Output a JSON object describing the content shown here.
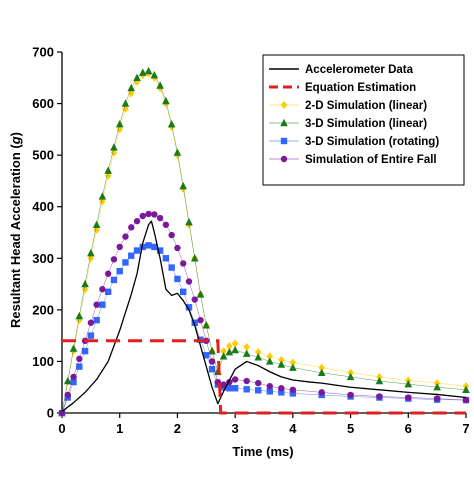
{
  "chart_data": {
    "type": "line",
    "xlabel": "Time (ms)",
    "ylabel": "Resultant Head Acceleration (g)",
    "xlim": [
      0,
      7
    ],
    "ylim": [
      0,
      700
    ],
    "xticks": [
      "0",
      "1",
      "2",
      "3",
      "4",
      "5",
      "6",
      "7"
    ],
    "yticks": [
      "0",
      "100",
      "200",
      "300",
      "400",
      "500",
      "600",
      "700"
    ],
    "grid": false,
    "legend_position": "top-right",
    "series": [
      {
        "name": "Accelerometer Data",
        "style": "solid-line",
        "color": "#000000",
        "x": [
          0,
          0.2,
          0.4,
          0.6,
          0.8,
          1.0,
          1.2,
          1.3,
          1.4,
          1.5,
          1.55,
          1.6,
          1.7,
          1.8,
          1.9,
          2.0,
          2.1,
          2.2,
          2.3,
          2.4,
          2.5,
          2.6,
          2.7,
          2.8,
          3.0,
          3.2,
          3.4,
          3.6,
          3.8,
          4.0,
          4.3,
          4.5,
          5.0,
          5.5,
          6.0,
          6.5,
          7.0
        ],
        "y": [
          3,
          20,
          40,
          65,
          100,
          160,
          230,
          270,
          330,
          365,
          372,
          350,
          300,
          240,
          228,
          232,
          218,
          200,
          170,
          130,
          90,
          50,
          18,
          42,
          85,
          100,
          92,
          80,
          70,
          64,
          60,
          58,
          50,
          45,
          40,
          36,
          30
        ]
      },
      {
        "name": "Equation Estimation",
        "style": "dashed-line",
        "color": "#e02020",
        "x": [
          0,
          2.7,
          2.75,
          7.0
        ],
        "y": [
          140,
          140,
          0,
          0
        ]
      },
      {
        "name": "2-D Simulation (linear)",
        "style": "marker-diamond",
        "color": "#ffcc00",
        "x": [
          0,
          0.1,
          0.2,
          0.3,
          0.4,
          0.5,
          0.6,
          0.7,
          0.8,
          0.9,
          1.0,
          1.1,
          1.2,
          1.3,
          1.4,
          1.5,
          1.6,
          1.7,
          1.8,
          1.9,
          2.0,
          2.1,
          2.2,
          2.3,
          2.4,
          2.5,
          2.6,
          2.7,
          2.8,
          2.9,
          3.0,
          3.2,
          3.4,
          3.6,
          3.8,
          4.0,
          4.5,
          5.0,
          5.5,
          6.0,
          6.5,
          7.0
        ],
        "y": [
          0,
          60,
          120,
          180,
          240,
          300,
          355,
          410,
          460,
          505,
          550,
          590,
          620,
          642,
          655,
          658,
          650,
          630,
          600,
          555,
          500,
          435,
          365,
          300,
          230,
          170,
          120,
          80,
          120,
          130,
          135,
          128,
          118,
          110,
          103,
          98,
          88,
          78,
          70,
          63,
          58,
          52
        ]
      },
      {
        "name": "3-D Simulation (linear)",
        "style": "marker-triangle",
        "color": "#1a7a1a",
        "x": [
          0,
          0.1,
          0.2,
          0.3,
          0.4,
          0.5,
          0.6,
          0.7,
          0.8,
          0.9,
          1.0,
          1.1,
          1.2,
          1.3,
          1.4,
          1.5,
          1.6,
          1.7,
          1.8,
          1.9,
          2.0,
          2.1,
          2.2,
          2.3,
          2.4,
          2.5,
          2.6,
          2.7,
          2.8,
          2.9,
          3.0,
          3.2,
          3.4,
          3.6,
          3.8,
          4.0,
          4.5,
          5.0,
          5.5,
          6.0,
          6.5,
          7.0
        ],
        "y": [
          0,
          62,
          125,
          188,
          250,
          310,
          365,
          420,
          470,
          515,
          560,
          600,
          630,
          650,
          660,
          663,
          655,
          635,
          605,
          560,
          505,
          440,
          370,
          300,
          230,
          170,
          120,
          80,
          110,
          118,
          122,
          115,
          108,
          100,
          94,
          88,
          78,
          70,
          62,
          56,
          50,
          45
        ]
      },
      {
        "name": "3-D Simulation (rotating)",
        "style": "marker-square",
        "color": "#3366ff",
        "x": [
          0,
          0.1,
          0.2,
          0.3,
          0.4,
          0.5,
          0.6,
          0.7,
          0.8,
          0.9,
          1.0,
          1.1,
          1.2,
          1.3,
          1.4,
          1.5,
          1.6,
          1.7,
          1.8,
          1.9,
          2.0,
          2.1,
          2.2,
          2.3,
          2.4,
          2.5,
          2.6,
          2.7,
          2.8,
          2.9,
          3.0,
          3.2,
          3.4,
          3.6,
          3.8,
          4.0,
          4.5,
          5.0,
          5.5,
          6.0,
          6.5,
          7.0
        ],
        "y": [
          0,
          30,
          60,
          90,
          120,
          150,
          180,
          210,
          235,
          258,
          275,
          292,
          305,
          315,
          322,
          325,
          322,
          315,
          300,
          282,
          260,
          235,
          205,
          175,
          142,
          112,
          85,
          55,
          50,
          48,
          48,
          46,
          44,
          42,
          40,
          38,
          35,
          32,
          30,
          28,
          26,
          25
        ]
      },
      {
        "name": "Simulation of Entire Fall",
        "style": "marker-circle",
        "color": "#7a1a9a",
        "x": [
          0,
          0.1,
          0.2,
          0.3,
          0.4,
          0.5,
          0.6,
          0.7,
          0.8,
          0.9,
          1.0,
          1.1,
          1.2,
          1.3,
          1.4,
          1.5,
          1.6,
          1.7,
          1.8,
          1.9,
          2.0,
          2.1,
          2.2,
          2.3,
          2.4,
          2.5,
          2.6,
          2.7,
          2.8,
          2.9,
          3.0,
          3.2,
          3.4,
          3.6,
          3.8,
          4.0,
          4.5,
          5.0,
          5.5,
          6.0,
          6.5,
          7.0
        ],
        "y": [
          0,
          35,
          70,
          105,
          140,
          175,
          210,
          240,
          270,
          298,
          322,
          342,
          360,
          372,
          382,
          386,
          385,
          378,
          365,
          345,
          320,
          290,
          255,
          220,
          180,
          140,
          100,
          60,
          55,
          60,
          65,
          62,
          58,
          52,
          48,
          45,
          40,
          35,
          32,
          30,
          28,
          25
        ]
      }
    ]
  }
}
